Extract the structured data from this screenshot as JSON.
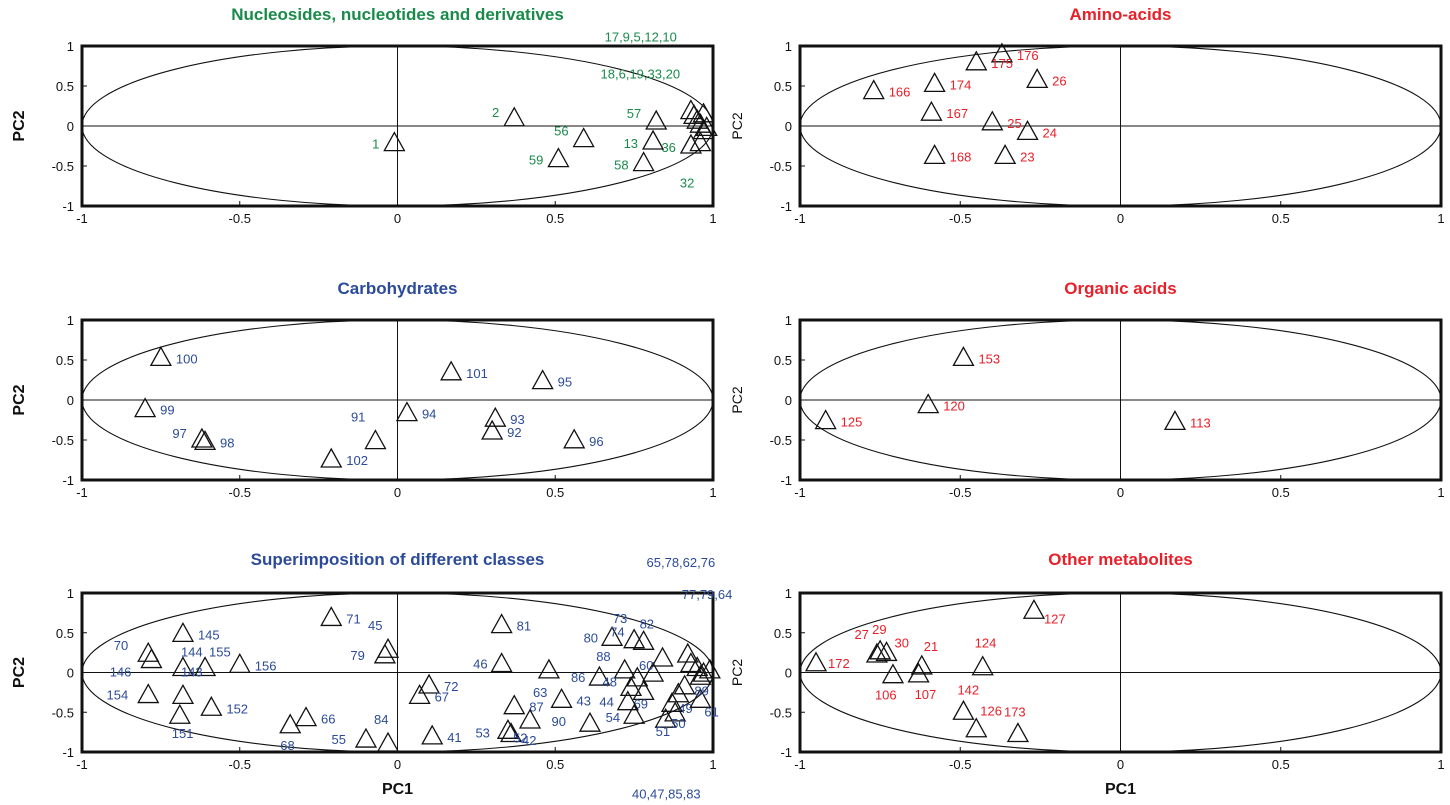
{
  "colors": {
    "green": "#1a8a4a",
    "blue": "#2b4b9a",
    "red": "#e8202a",
    "ink": "#111111"
  },
  "chart_data": [
    {
      "type": "scatter",
      "title": "Nucleosides, nucleotides and derivatives",
      "title_color": "green",
      "xlabel": "",
      "ylabel": "PC2",
      "xlim": [
        -1,
        1
      ],
      "ylim": [
        -1,
        1
      ],
      "xticks": [
        "-1",
        "-0.5",
        "0",
        "0.5",
        "1"
      ],
      "yticks": [
        "1",
        "0.5",
        "0",
        "-0.5",
        "-1"
      ],
      "marker": "triangle",
      "points": [
        {
          "x": -0.01,
          "y": -0.22,
          "label": "1"
        },
        {
          "x": 0.37,
          "y": 0.09,
          "label": "2"
        },
        {
          "x": 0.59,
          "y": -0.17,
          "label": "56"
        },
        {
          "x": 0.51,
          "y": -0.42,
          "label": "59"
        },
        {
          "x": 0.82,
          "y": 0.05,
          "label": "57"
        },
        {
          "x": 0.81,
          "y": -0.2,
          "label": "13"
        },
        {
          "x": 0.78,
          "y": -0.47,
          "label": "58"
        },
        {
          "x": 0.93,
          "y": -0.25,
          "label": "36"
        },
        {
          "x": 0.96,
          "y": -0.22,
          "label": "32"
        },
        {
          "x": 0.93,
          "y": 0.18,
          "label": "17,9,5,12,10"
        },
        {
          "x": 0.94,
          "y": 0.12,
          "label": "18,6,19,33,20"
        },
        {
          "x": 0.95,
          "y": 0.06,
          "label": ""
        },
        {
          "x": 0.96,
          "y": 0.01,
          "label": ""
        },
        {
          "x": 0.97,
          "y": 0.14,
          "label": ""
        },
        {
          "x": 0.98,
          "y": -0.03,
          "label": ""
        },
        {
          "x": 0.97,
          "y": -0.07,
          "label": ""
        }
      ]
    },
    {
      "type": "scatter",
      "title": "Amino-acids",
      "title_color": "red",
      "xlabel": "",
      "ylabel": "PC2",
      "xlim": [
        -1,
        1
      ],
      "ylim": [
        -1,
        1
      ],
      "xticks": [
        "-1",
        "-0.5",
        "0",
        "0.5",
        "1"
      ],
      "yticks": [
        "1",
        "0.5",
        "0",
        "-0.5",
        "-1"
      ],
      "marker": "triangle",
      "points": [
        {
          "x": -0.37,
          "y": 0.89,
          "label": "176"
        },
        {
          "x": -0.45,
          "y": 0.79,
          "label": "175"
        },
        {
          "x": -0.26,
          "y": 0.57,
          "label": "26"
        },
        {
          "x": -0.58,
          "y": 0.52,
          "label": "174"
        },
        {
          "x": -0.77,
          "y": 0.43,
          "label": "166"
        },
        {
          "x": -0.59,
          "y": 0.16,
          "label": "167"
        },
        {
          "x": -0.4,
          "y": 0.04,
          "label": "25"
        },
        {
          "x": -0.29,
          "y": -0.08,
          "label": "24"
        },
        {
          "x": -0.58,
          "y": -0.38,
          "label": "168"
        },
        {
          "x": -0.36,
          "y": -0.38,
          "label": "23"
        }
      ]
    },
    {
      "type": "scatter",
      "title": "Carbohydrates",
      "title_color": "blue",
      "xlabel": "",
      "ylabel": "PC2",
      "xlim": [
        -1,
        1
      ],
      "ylim": [
        -1,
        1
      ],
      "xticks": [
        "-1",
        "-0.5",
        "0",
        "0.5",
        "1"
      ],
      "yticks": [
        "1",
        "0.5",
        "0",
        "-0.5",
        "-1"
      ],
      "marker": "triangle",
      "points": [
        {
          "x": -0.75,
          "y": 0.52,
          "label": "100"
        },
        {
          "x": -0.8,
          "y": -0.12,
          "label": "99"
        },
        {
          "x": -0.62,
          "y": -0.5,
          "label": "97"
        },
        {
          "x": -0.61,
          "y": -0.53,
          "label": "98"
        },
        {
          "x": -0.21,
          "y": -0.75,
          "label": "102"
        },
        {
          "x": -0.07,
          "y": -0.52,
          "label": "91"
        },
        {
          "x": 0.03,
          "y": -0.17,
          "label": "94"
        },
        {
          "x": 0.17,
          "y": 0.34,
          "label": "101"
        },
        {
          "x": 0.46,
          "y": 0.23,
          "label": "95"
        },
        {
          "x": 0.31,
          "y": -0.24,
          "label": "93"
        },
        {
          "x": 0.3,
          "y": -0.4,
          "label": "92"
        },
        {
          "x": 0.56,
          "y": -0.51,
          "label": "96"
        }
      ]
    },
    {
      "type": "scatter",
      "title": "Organic acids",
      "title_color": "red",
      "xlabel": "",
      "ylabel": "PC2",
      "xlim": [
        -1,
        1
      ],
      "ylim": [
        -1,
        1
      ],
      "xticks": [
        "-1",
        "-0.5",
        "0",
        "0.5",
        "1"
      ],
      "yticks": [
        "1",
        "0.5",
        "0",
        "-0.5",
        "-1"
      ],
      "marker": "triangle",
      "points": [
        {
          "x": -0.49,
          "y": 0.52,
          "label": "153"
        },
        {
          "x": -0.6,
          "y": -0.07,
          "label": "120"
        },
        {
          "x": -0.92,
          "y": -0.27,
          "label": "125"
        },
        {
          "x": 0.17,
          "y": -0.28,
          "label": "113"
        }
      ]
    },
    {
      "type": "scatter",
      "title": "Superimposition of different classes",
      "title_color": "blue",
      "xlabel": "PC1",
      "ylabel": "PC2",
      "xlim": [
        -1,
        1
      ],
      "ylim": [
        -1,
        1
      ],
      "xticks": [
        "-1",
        "-0.5",
        "0",
        "0.5",
        "1"
      ],
      "yticks": [
        "1",
        "0.5",
        "0",
        "-0.5",
        "-1"
      ],
      "marker": "triangle",
      "points": [
        {
          "x": -0.21,
          "y": 0.68,
          "label": "71"
        },
        {
          "x": -0.68,
          "y": 0.48,
          "label": "145"
        },
        {
          "x": -0.79,
          "y": 0.23,
          "label": "70"
        },
        {
          "x": -0.78,
          "y": 0.15,
          "label": "146"
        },
        {
          "x": -0.68,
          "y": 0.05,
          "label": "144"
        },
        {
          "x": -0.61,
          "y": 0.05,
          "label": "155"
        },
        {
          "x": -0.5,
          "y": 0.09,
          "label": "156"
        },
        {
          "x": -0.79,
          "y": -0.29,
          "label": "154"
        },
        {
          "x": -0.68,
          "y": -0.3,
          "label": "143"
        },
        {
          "x": -0.69,
          "y": -0.55,
          "label": "151"
        },
        {
          "x": -0.59,
          "y": -0.45,
          "label": "152"
        },
        {
          "x": -0.03,
          "y": 0.28,
          "label": "45"
        },
        {
          "x": -0.04,
          "y": 0.21,
          "label": "79"
        },
        {
          "x": -0.29,
          "y": -0.58,
          "label": "66"
        },
        {
          "x": -0.34,
          "y": -0.67,
          "label": "68"
        },
        {
          "x": -0.1,
          "y": -0.85,
          "label": "55"
        },
        {
          "x": -0.03,
          "y": -0.9,
          "label": "84"
        },
        {
          "x": 0.1,
          "y": -0.17,
          "label": "72"
        },
        {
          "x": 0.07,
          "y": -0.3,
          "label": "67"
        },
        {
          "x": 0.11,
          "y": -0.81,
          "label": "41"
        },
        {
          "x": 0.33,
          "y": 0.59,
          "label": "81"
        },
        {
          "x": 0.33,
          "y": 0.1,
          "label": "46"
        },
        {
          "x": 0.48,
          "y": 0.02,
          "label": "63"
        },
        {
          "x": 0.37,
          "y": -0.43,
          "label": "87"
        },
        {
          "x": 0.52,
          "y": -0.35,
          "label": "43"
        },
        {
          "x": 0.42,
          "y": -0.61,
          "label": "42"
        },
        {
          "x": 0.35,
          "y": -0.74,
          "label": "53"
        },
        {
          "x": 0.36,
          "y": -0.78,
          "label": "52"
        },
        {
          "x": 0.61,
          "y": -0.65,
          "label": "90"
        },
        {
          "x": 0.68,
          "y": 0.43,
          "label": "80"
        },
        {
          "x": 0.75,
          "y": 0.4,
          "label": "74"
        },
        {
          "x": 0.78,
          "y": 0.38,
          "label": "82"
        },
        {
          "x": 0.72,
          "y": 0.02,
          "label": "88"
        },
        {
          "x": 0.64,
          "y": -0.07,
          "label": "86"
        },
        {
          "x": 0.81,
          "y": -0.02,
          "label": "60"
        },
        {
          "x": 0.74,
          "y": -0.2,
          "label": "48"
        },
        {
          "x": 0.78,
          "y": -0.25,
          "label": "69"
        },
        {
          "x": 0.73,
          "y": -0.38,
          "label": "44"
        },
        {
          "x": 0.75,
          "y": -0.55,
          "label": "54"
        },
        {
          "x": 0.85,
          "y": -0.6,
          "label": "51"
        },
        {
          "x": 0.88,
          "y": -0.52,
          "label": "50"
        },
        {
          "x": 0.89,
          "y": -0.28,
          "label": "49"
        },
        {
          "x": 0.96,
          "y": -0.35,
          "label": "61"
        },
        {
          "x": 0.96,
          "y": -0.06,
          "label": "89"
        },
        {
          "x": 0.76,
          "y": -0.08,
          "label": "73"
        },
        {
          "x": 0.84,
          "y": 0.17,
          "label": "65,78,62,76"
        },
        {
          "x": 0.92,
          "y": 0.22,
          "label": "77,79,64"
        },
        {
          "x": 0.93,
          "y": 0.1,
          "label": ""
        },
        {
          "x": 0.95,
          "y": 0.05,
          "label": ""
        },
        {
          "x": 0.97,
          "y": -0.02,
          "label": ""
        },
        {
          "x": 0.99,
          "y": 0.02,
          "label": ""
        },
        {
          "x": 0.91,
          "y": -0.18,
          "label": ""
        },
        {
          "x": 0.87,
          "y": -0.4,
          "label": "40,47,85,83"
        }
      ]
    },
    {
      "type": "scatter",
      "title": "Other metabolites",
      "title_color": "red",
      "xlabel": "PC1",
      "ylabel": "PC2",
      "xlim": [
        -1,
        1
      ],
      "ylim": [
        -1,
        1
      ],
      "xticks": [
        "-1",
        "-0.5",
        "0",
        "0.5",
        "1"
      ],
      "yticks": [
        "1",
        "0.5",
        "0",
        "-0.5",
        "-1"
      ],
      "marker": "triangle",
      "points": [
        {
          "x": -0.27,
          "y": 0.77,
          "label": "127"
        },
        {
          "x": -0.75,
          "y": 0.26,
          "label": "29"
        },
        {
          "x": -0.76,
          "y": 0.22,
          "label": "27"
        },
        {
          "x": -0.73,
          "y": 0.24,
          "label": "30"
        },
        {
          "x": -0.62,
          "y": 0.07,
          "label": "21"
        },
        {
          "x": -0.95,
          "y": 0.11,
          "label": "172"
        },
        {
          "x": -0.71,
          "y": -0.04,
          "label": "106"
        },
        {
          "x": -0.63,
          "y": -0.03,
          "label": "107"
        },
        {
          "x": -0.43,
          "y": 0.06,
          "label": "124"
        },
        {
          "x": -0.49,
          "y": -0.5,
          "label": "142"
        },
        {
          "x": -0.45,
          "y": -0.72,
          "label": "126"
        },
        {
          "x": -0.32,
          "y": -0.78,
          "label": "173"
        }
      ]
    }
  ]
}
